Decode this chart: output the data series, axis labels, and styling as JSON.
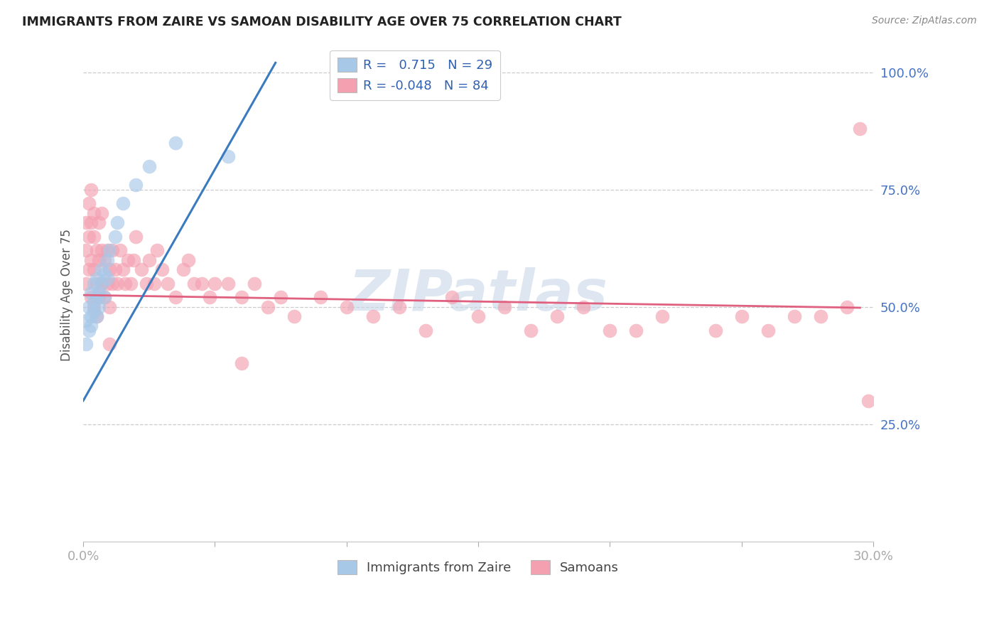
{
  "title": "IMMIGRANTS FROM ZAIRE VS SAMOAN DISABILITY AGE OVER 75 CORRELATION CHART",
  "source": "Source: ZipAtlas.com",
  "ylabel": "Disability Age Over 75",
  "xlim": [
    0.0,
    0.3
  ],
  "ylim": [
    0.0,
    1.05
  ],
  "legend_r_blue": "0.715",
  "legend_n_blue": "29",
  "legend_r_pink": "-0.048",
  "legend_n_pink": "84",
  "blue_color": "#a8c8e8",
  "pink_color": "#f4a0b0",
  "blue_line_color": "#3a7abf",
  "pink_line_color": "#e06080",
  "watermark_color": "#c8d8e8",
  "zaire_x": [
    0.001,
    0.001,
    0.002,
    0.002,
    0.003,
    0.003,
    0.003,
    0.004,
    0.004,
    0.004,
    0.005,
    0.005,
    0.005,
    0.006,
    0.006,
    0.007,
    0.007,
    0.008,
    0.008,
    0.009,
    0.009,
    0.01,
    0.012,
    0.013,
    0.015,
    0.02,
    0.025,
    0.035,
    0.055
  ],
  "zaire_y": [
    0.42,
    0.47,
    0.5,
    0.45,
    0.48,
    0.53,
    0.46,
    0.51,
    0.55,
    0.49,
    0.52,
    0.48,
    0.56,
    0.53,
    0.5,
    0.55,
    0.58,
    0.57,
    0.52,
    0.6,
    0.56,
    0.62,
    0.65,
    0.68,
    0.72,
    0.76,
    0.8,
    0.85,
    0.82
  ],
  "samoan_x": [
    0.001,
    0.001,
    0.001,
    0.002,
    0.002,
    0.002,
    0.003,
    0.003,
    0.003,
    0.003,
    0.004,
    0.004,
    0.004,
    0.004,
    0.005,
    0.005,
    0.005,
    0.006,
    0.006,
    0.006,
    0.007,
    0.007,
    0.007,
    0.008,
    0.008,
    0.009,
    0.009,
    0.01,
    0.01,
    0.011,
    0.011,
    0.012,
    0.013,
    0.014,
    0.015,
    0.016,
    0.017,
    0.018,
    0.019,
    0.02,
    0.022,
    0.024,
    0.025,
    0.027,
    0.028,
    0.03,
    0.032,
    0.035,
    0.038,
    0.04,
    0.042,
    0.045,
    0.048,
    0.05,
    0.055,
    0.06,
    0.065,
    0.07,
    0.075,
    0.08,
    0.09,
    0.1,
    0.11,
    0.12,
    0.13,
    0.14,
    0.15,
    0.16,
    0.17,
    0.18,
    0.19,
    0.2,
    0.21,
    0.22,
    0.24,
    0.25,
    0.26,
    0.27,
    0.28,
    0.29,
    0.295,
    0.298,
    0.01,
    0.06
  ],
  "samoan_y": [
    0.55,
    0.62,
    0.68,
    0.58,
    0.65,
    0.72,
    0.52,
    0.6,
    0.68,
    0.75,
    0.5,
    0.58,
    0.65,
    0.7,
    0.55,
    0.62,
    0.48,
    0.52,
    0.6,
    0.68,
    0.55,
    0.62,
    0.7,
    0.52,
    0.6,
    0.55,
    0.62,
    0.5,
    0.58,
    0.55,
    0.62,
    0.58,
    0.55,
    0.62,
    0.58,
    0.55,
    0.6,
    0.55,
    0.6,
    0.65,
    0.58,
    0.55,
    0.6,
    0.55,
    0.62,
    0.58,
    0.55,
    0.52,
    0.58,
    0.6,
    0.55,
    0.55,
    0.52,
    0.55,
    0.55,
    0.52,
    0.55,
    0.5,
    0.52,
    0.48,
    0.52,
    0.5,
    0.48,
    0.5,
    0.45,
    0.52,
    0.48,
    0.5,
    0.45,
    0.48,
    0.5,
    0.45,
    0.45,
    0.48,
    0.45,
    0.48,
    0.45,
    0.48,
    0.48,
    0.5,
    0.88,
    0.3,
    0.42,
    0.38
  ],
  "blue_line_x": [
    0.0,
    0.073
  ],
  "blue_line_y": [
    0.3,
    1.02
  ],
  "pink_line_x": [
    0.0,
    0.295
  ],
  "pink_line_y": [
    0.525,
    0.498
  ]
}
